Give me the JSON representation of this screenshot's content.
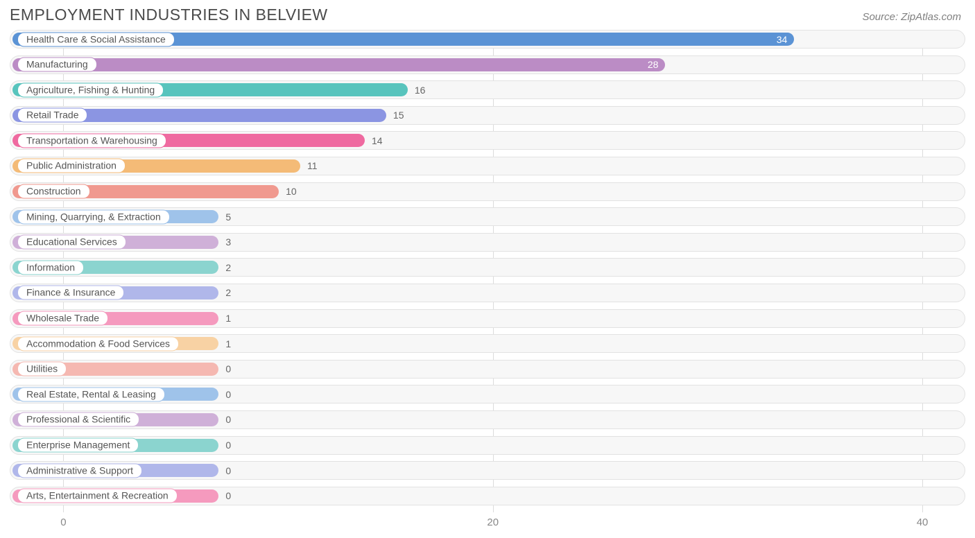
{
  "title": "EMPLOYMENT INDUSTRIES IN BELVIEW",
  "source_label": "Source: ZipAtlas.com",
  "chart": {
    "type": "bar-horizontal",
    "xmin": -2.5,
    "xmax": 42,
    "xticks": [
      0,
      20,
      40
    ],
    "row_bg": "#f7f7f7",
    "row_border": "#e2e2e2",
    "grid_color": "#dcdcdc",
    "title_color": "#4a4a4a",
    "label_color": "#555555",
    "axis_color": "#888888",
    "min_bar_value": 7.2,
    "items": [
      {
        "label": "Health Care & Social Assistance",
        "value": 34,
        "color": "#5b93d5",
        "value_inside": true,
        "value_text_color": "#ffffff"
      },
      {
        "label": "Manufacturing",
        "value": 28,
        "color": "#bb8cc5",
        "value_inside": true,
        "value_text_color": "#ffffff"
      },
      {
        "label": "Agriculture, Fishing & Hunting",
        "value": 16,
        "color": "#58c4bd",
        "value_inside": false,
        "value_text_color": "#666666"
      },
      {
        "label": "Retail Trade",
        "value": 15,
        "color": "#8b95e2",
        "value_inside": false,
        "value_text_color": "#666666"
      },
      {
        "label": "Transportation & Warehousing",
        "value": 14,
        "color": "#ef6aa0",
        "value_inside": false,
        "value_text_color": "#666666"
      },
      {
        "label": "Public Administration",
        "value": 11,
        "color": "#f4bb77",
        "value_inside": false,
        "value_text_color": "#666666"
      },
      {
        "label": "Construction",
        "value": 10,
        "color": "#f0998f",
        "value_inside": false,
        "value_text_color": "#666666"
      },
      {
        "label": "Mining, Quarrying, & Extraction",
        "value": 5,
        "color": "#9fc3ea",
        "value_inside": false,
        "value_text_color": "#666666"
      },
      {
        "label": "Educational Services",
        "value": 3,
        "color": "#cfb0d8",
        "value_inside": false,
        "value_text_color": "#666666"
      },
      {
        "label": "Information",
        "value": 2,
        "color": "#8bd4cf",
        "value_inside": false,
        "value_text_color": "#666666"
      },
      {
        "label": "Finance & Insurance",
        "value": 2,
        "color": "#b0b7ea",
        "value_inside": false,
        "value_text_color": "#666666"
      },
      {
        "label": "Wholesale Trade",
        "value": 1,
        "color": "#f59abe",
        "value_inside": false,
        "value_text_color": "#666666"
      },
      {
        "label": "Accommodation & Food Services",
        "value": 1,
        "color": "#f8d2a4",
        "value_inside": false,
        "value_text_color": "#666666"
      },
      {
        "label": "Utilities",
        "value": 0,
        "color": "#f5b8b1",
        "value_inside": false,
        "value_text_color": "#666666"
      },
      {
        "label": "Real Estate, Rental & Leasing",
        "value": 0,
        "color": "#9fc3ea",
        "value_inside": false,
        "value_text_color": "#666666"
      },
      {
        "label": "Professional & Scientific",
        "value": 0,
        "color": "#cfb0d8",
        "value_inside": false,
        "value_text_color": "#666666"
      },
      {
        "label": "Enterprise Management",
        "value": 0,
        "color": "#8bd4cf",
        "value_inside": false,
        "value_text_color": "#666666"
      },
      {
        "label": "Administrative & Support",
        "value": 0,
        "color": "#b0b7ea",
        "value_inside": false,
        "value_text_color": "#666666"
      },
      {
        "label": "Arts, Entertainment & Recreation",
        "value": 0,
        "color": "#f59abe",
        "value_inside": false,
        "value_text_color": "#666666"
      }
    ]
  }
}
